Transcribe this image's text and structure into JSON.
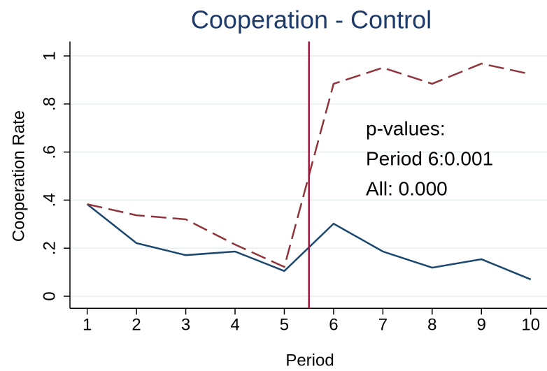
{
  "chart_data": {
    "type": "line",
    "title": "Cooperation - Control",
    "xlabel": "Period",
    "ylabel": "Cooperation Rate",
    "x": [
      1,
      2,
      3,
      4,
      5,
      6,
      7,
      8,
      9,
      10
    ],
    "series": [
      {
        "color": "#1a476f",
        "dash": false,
        "values": [
          0.383,
          0.221,
          0.171,
          0.186,
          0.105,
          0.302,
          0.186,
          0.119,
          0.154,
          0.07
        ]
      },
      {
        "color": "#90353b",
        "dash": true,
        "values": [
          0.383,
          0.337,
          0.32,
          0.215,
          0.122,
          0.884,
          0.951,
          0.884,
          0.968,
          0.924
        ]
      }
    ],
    "xlim": [
      0.65,
      10.33
    ],
    "ylim": [
      -0.05,
      1.06
    ],
    "xticks": [
      1,
      2,
      3,
      4,
      5,
      6,
      7,
      8,
      9,
      10
    ],
    "yticks": [
      0,
      {
        "value": 0.2,
        "label": ".2"
      },
      {
        "value": 0.4,
        "label": ".4"
      },
      {
        "value": 0.6,
        "label": ".6"
      },
      {
        "value": 0.8,
        "label": ".8"
      },
      1
    ],
    "grid": true,
    "vline": {
      "x": 5.5,
      "color": "#a0163c"
    },
    "annotation": [
      "p-values:",
      "Period 6:0.001",
      "All: 0.000"
    ]
  }
}
